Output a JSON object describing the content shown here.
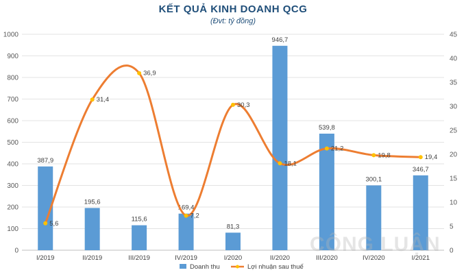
{
  "chart_data": {
    "type": "bar+line",
    "title": "KẾT QUẢ KINH DOANH QCG",
    "subtitle": "(Đvt: tỷ đồng)",
    "categories": [
      "I/2019",
      "II/2019",
      "III/2019",
      "IV/2019",
      "I/2020",
      "II/2020",
      "III/2020",
      "IV/2020",
      "I/2021"
    ],
    "series": [
      {
        "name": "Doanh thu",
        "type": "bar",
        "axis": "left",
        "color": "#5b9bd5",
        "values": [
          387.9,
          195.6,
          115.6,
          169.4,
          81.3,
          946.7,
          539.8,
          300.1,
          346.7
        ],
        "labels": [
          "387,9",
          "195,6",
          "115,6",
          "169,4",
          "81,3",
          "946,7",
          "539,8",
          "300,1",
          "346,7"
        ]
      },
      {
        "name": "Lợi nhuận sau thuế",
        "type": "line",
        "axis": "right",
        "color": "#ed7d31",
        "marker_color": "#ffc000",
        "values": [
          5.6,
          31.4,
          36.9,
          7.2,
          30.3,
          18.1,
          21.2,
          19.8,
          19.4
        ],
        "labels": [
          "5,6",
          "31,4",
          "36,9",
          "7,2",
          "30,3",
          "18,1",
          "21,2",
          "19,8",
          "19,4"
        ]
      }
    ],
    "y_left": {
      "min": 0,
      "max": 1000,
      "step": 100,
      "ticks": [
        "0",
        "100",
        "200",
        "300",
        "400",
        "500",
        "600",
        "700",
        "800",
        "900",
        "1000"
      ]
    },
    "y_right": {
      "min": 0,
      "max": 45,
      "step": 5,
      "ticks": [
        "0",
        "5",
        "10",
        "15",
        "20",
        "25",
        "30",
        "35",
        "40",
        "45"
      ]
    },
    "grid": true,
    "legend": "bottom"
  },
  "watermark": "CÔNG LUẬN"
}
